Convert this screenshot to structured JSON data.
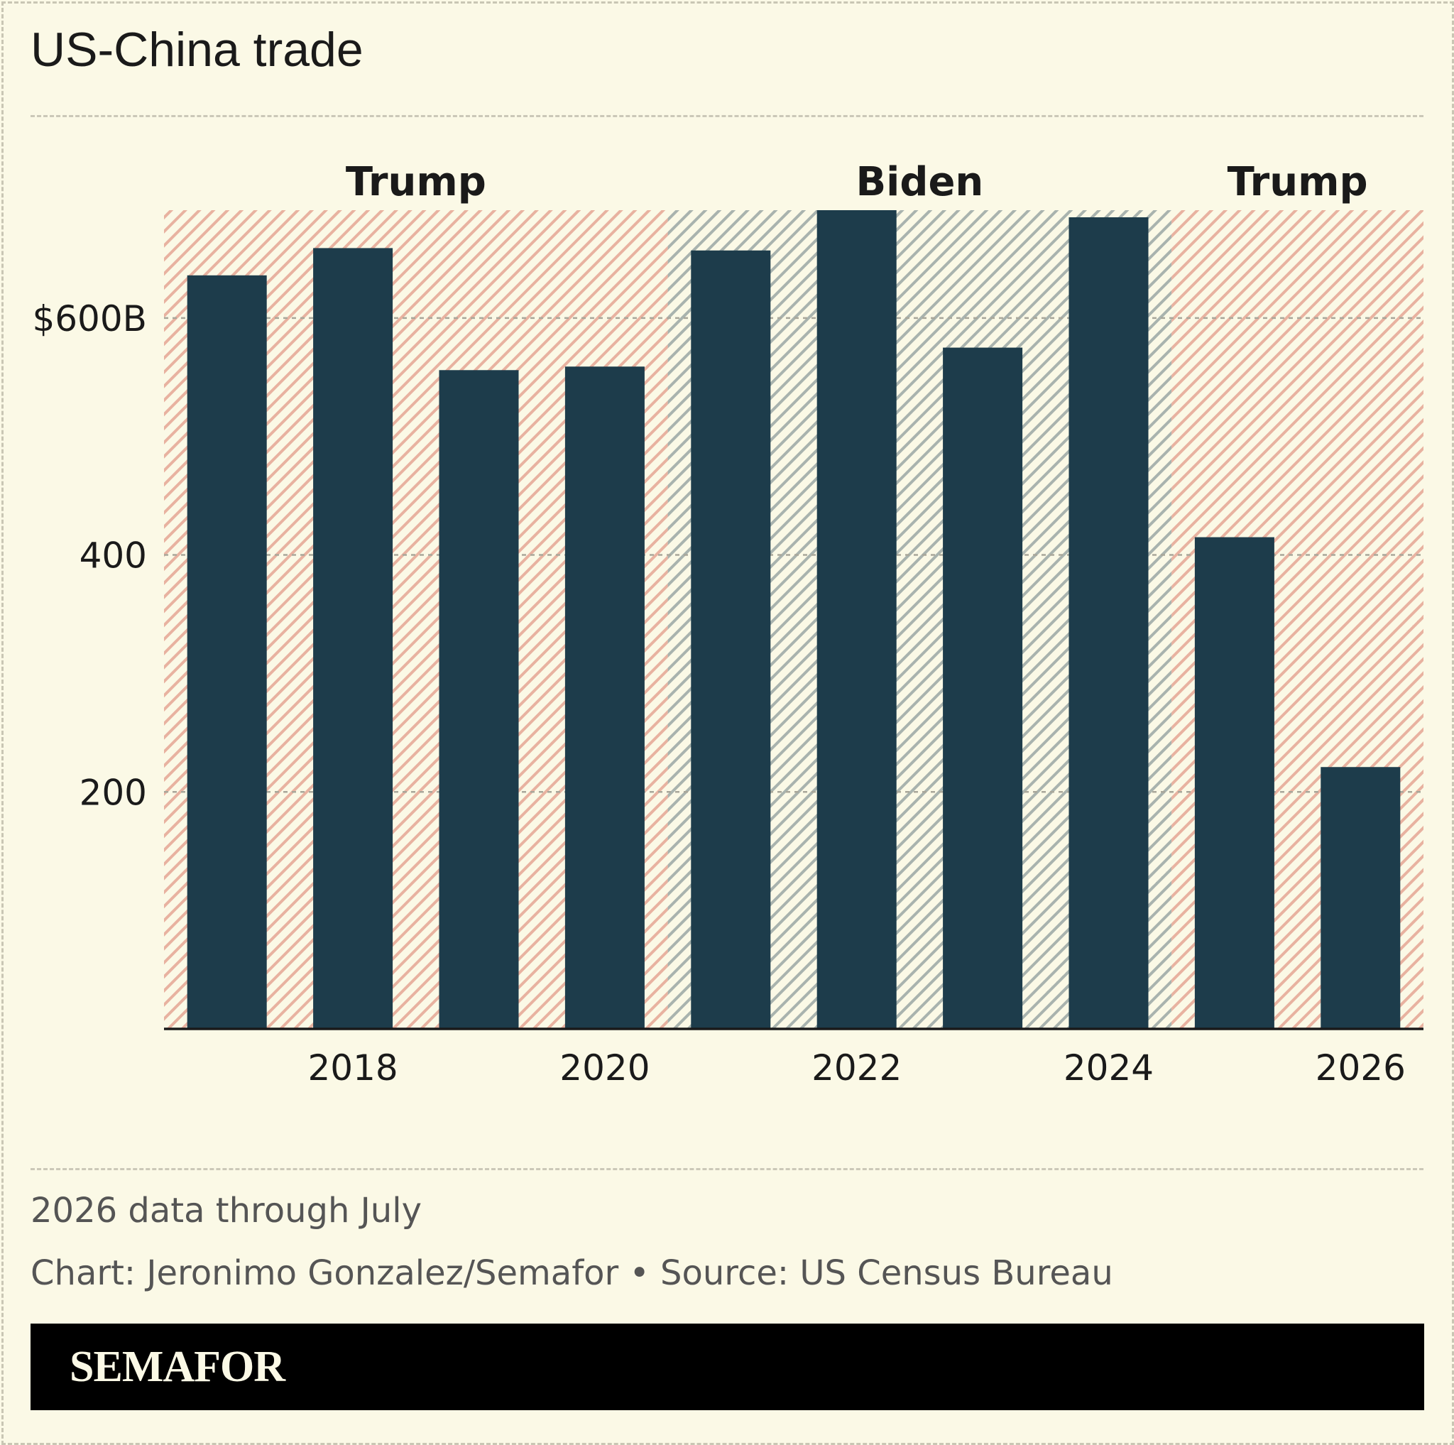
{
  "title": "US-China trade",
  "chart_data": {
    "type": "bar",
    "x": [
      2017,
      2018,
      2019,
      2020,
      2021,
      2022,
      2023,
      2024,
      2025,
      2026
    ],
    "values": [
      636,
      659,
      556,
      559,
      657,
      691,
      575,
      685,
      415,
      221
    ],
    "unit": "$B",
    "ylim": [
      0,
      691
    ],
    "y_ticks": [
      200,
      400,
      600
    ],
    "y_tick_labels": [
      "200",
      "400",
      "$600B"
    ],
    "x_ticks": [
      2018,
      2020,
      2022,
      2024,
      2026
    ],
    "x_tick_labels": [
      "2018",
      "2020",
      "2022",
      "2024",
      "2026"
    ],
    "grid": "horizontal dashed",
    "bar_color": "#1d3c4b",
    "periods": [
      {
        "label": "Trump",
        "from": 2017,
        "to": 2020,
        "color": "#e8b2a0"
      },
      {
        "label": "Biden",
        "from": 2021,
        "to": 2024,
        "color": "#a9b3ae"
      },
      {
        "label": "Trump",
        "from": 2025,
        "to": 2026,
        "color": "#e8b2a0"
      }
    ]
  },
  "notes": {
    "data_note": "2026 data through July",
    "credit": "Chart: Jeronimo Gonzalez/Semafor • Source: US Census Bureau"
  },
  "brand": "SEMAFOR"
}
